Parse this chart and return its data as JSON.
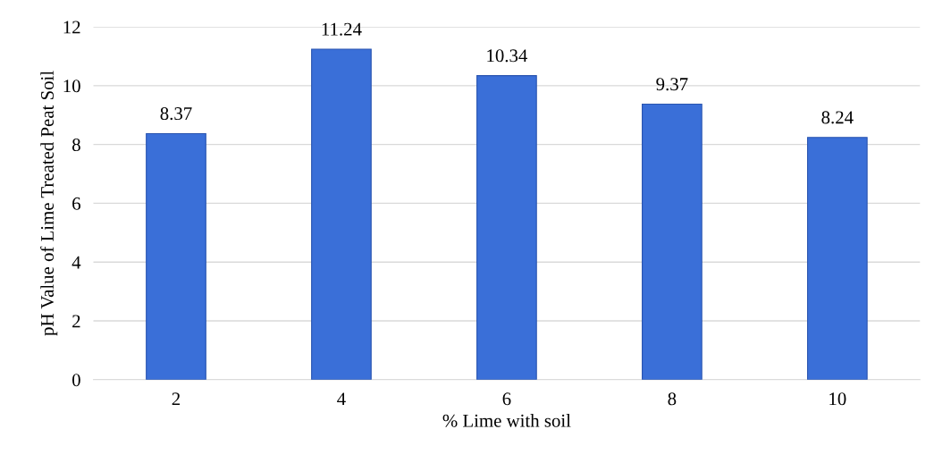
{
  "chart_data": {
    "type": "bar",
    "xlabel": "% Lime with soil",
    "ylabel": "pH Value of Lime Treated Peat Soil",
    "categories": [
      "2",
      "4",
      "6",
      "8",
      "10"
    ],
    "values": [
      8.37,
      11.24,
      10.34,
      9.37,
      8.24
    ],
    "color": "#3a6fd8",
    "ylim": [
      0,
      12
    ],
    "yticks": [
      0,
      2,
      4,
      6,
      8,
      10,
      12
    ],
    "grid": "y",
    "data_labels": true
  }
}
